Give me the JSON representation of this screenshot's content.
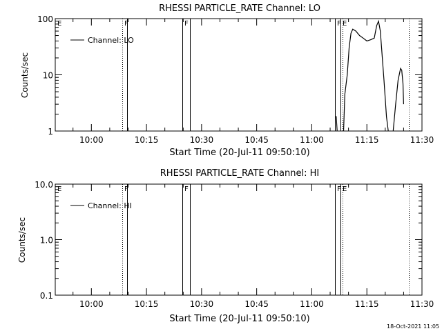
{
  "footer": {
    "timestamp": "18-Oct-2021 11:05"
  },
  "chart_data": [
    {
      "type": "line",
      "title": "RHESSI PARTICLE_RATE Channel: LO",
      "xlabel": "Start Time (20-Jul-11 09:50:10)",
      "ylabel": "Counts/sec",
      "yscale": "log",
      "ylim": [
        1,
        100
      ],
      "xlim": [
        "09:50:10",
        "11:30:00"
      ],
      "x_tick_labels": [
        "10:00",
        "10:15",
        "10:30",
        "10:45",
        "11:00",
        "11:15",
        "11:30"
      ],
      "y_tick_labels": [
        "1",
        "10",
        "100"
      ],
      "legend": {
        "position": "top-left",
        "entries": [
          "Channel: LO"
        ]
      },
      "flag_markers": [
        {
          "label": "E",
          "time": "09:50:10",
          "style": "none"
        },
        {
          "label": "F",
          "time": "10:08:20",
          "style": "dotted"
        },
        {
          "label": "F",
          "time": "10:24:50",
          "style": "solid"
        },
        {
          "label": "F",
          "time": "11:06:20",
          "style": "solid"
        },
        {
          "label": "E",
          "time": "11:07:50",
          "style": "dotted"
        }
      ],
      "boundary_lines": [
        {
          "time": "10:08:20",
          "style": "dotted"
        },
        {
          "time": "10:09:40",
          "style": "solid"
        },
        {
          "time": "10:24:50",
          "style": "solid"
        },
        {
          "time": "10:26:50",
          "style": "solid"
        },
        {
          "time": "11:06:20",
          "style": "solid"
        },
        {
          "time": "11:07:50",
          "style": "solid"
        },
        {
          "time": "11:08:20",
          "style": "dotted"
        },
        {
          "time": "11:26:30",
          "style": "dotted"
        }
      ],
      "series": [
        {
          "name": "Channel: LO",
          "segments": [
            [
              [
                "11:06:20",
                1.8
              ],
              [
                "11:06:40",
                1.8
              ],
              [
                "11:06:55",
                1.0
              ]
            ],
            [
              [
                "11:08:40",
                1.0
              ],
              [
                "11:09:00",
                4.5
              ],
              [
                "11:09:40",
                10
              ],
              [
                "11:10:10",
                30
              ],
              [
                "11:10:40",
                55
              ],
              [
                "11:11:10",
                65
              ],
              [
                "11:12:00",
                60
              ],
              [
                "11:13:00",
                50
              ],
              [
                "11:14:00",
                45
              ],
              [
                "11:15:00",
                40
              ],
              [
                "11:16:00",
                42
              ],
              [
                "11:17:00",
                45
              ],
              [
                "11:17:40",
                75
              ],
              [
                "11:18:10",
                90
              ],
              [
                "11:18:40",
                60
              ],
              [
                "11:19:40",
                8
              ],
              [
                "11:20:20",
                1.8
              ],
              [
                "11:20:50",
                1.0
              ]
            ],
            [
              [
                "11:22:10",
                1.0
              ],
              [
                "11:22:50",
                3
              ],
              [
                "11:23:30",
                8
              ],
              [
                "11:24:10",
                13
              ],
              [
                "11:24:30",
                12
              ],
              [
                "11:24:50",
                7
              ],
              [
                "11:25:00",
                3
              ]
            ]
          ]
        }
      ]
    },
    {
      "type": "line",
      "title": "RHESSI PARTICLE_RATE Channel: HI",
      "xlabel": "Start Time (20-Jul-11 09:50:10)",
      "ylabel": "Counts/sec",
      "yscale": "log",
      "ylim": [
        0.1,
        10
      ],
      "xlim": [
        "09:50:10",
        "11:30:00"
      ],
      "x_tick_labels": [
        "10:00",
        "10:15",
        "10:30",
        "10:45",
        "11:00",
        "11:15",
        "11:30"
      ],
      "y_tick_labels": [
        "0.1",
        "1.0",
        "10.0"
      ],
      "legend": {
        "position": "top-left",
        "entries": [
          "Channel: HI"
        ]
      },
      "flag_markers": [
        {
          "label": "E",
          "time": "09:50:10",
          "style": "none"
        },
        {
          "label": "F",
          "time": "10:08:20",
          "style": "dotted"
        },
        {
          "label": "F",
          "time": "10:24:50",
          "style": "solid"
        },
        {
          "label": "F",
          "time": "11:06:20",
          "style": "solid"
        },
        {
          "label": "E",
          "time": "11:07:50",
          "style": "dotted"
        }
      ],
      "boundary_lines": [
        {
          "time": "10:08:20",
          "style": "dotted"
        },
        {
          "time": "10:09:40",
          "style": "solid"
        },
        {
          "time": "10:24:50",
          "style": "solid"
        },
        {
          "time": "10:26:50",
          "style": "solid"
        },
        {
          "time": "11:06:20",
          "style": "solid"
        },
        {
          "time": "11:07:50",
          "style": "solid"
        },
        {
          "time": "11:08:20",
          "style": "dotted"
        },
        {
          "time": "11:26:30",
          "style": "dotted"
        }
      ],
      "series": [
        {
          "name": "Channel: HI",
          "segments": []
        }
      ]
    }
  ]
}
